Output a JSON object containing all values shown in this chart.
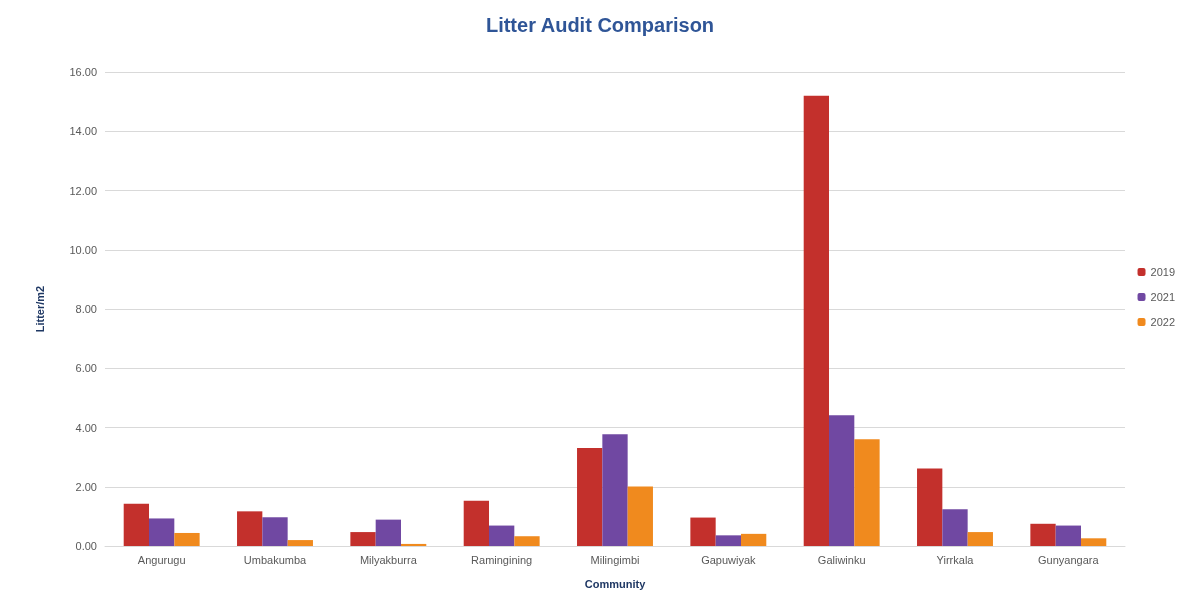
{
  "chart_data": {
    "type": "bar",
    "title": "Litter Audit Comparison",
    "xlabel": "Community",
    "ylabel": "Litter/m2",
    "categories": [
      "Angurugu",
      "Umbakumba",
      "Milyakburra",
      "Ramingining",
      "Milingimbi",
      "Gapuwiyak",
      "Galiwinku",
      "Yirrkala",
      "Gunyangara"
    ],
    "series": [
      {
        "name": "2019",
        "color": "#c3302c",
        "values": [
          1.43,
          1.17,
          0.47,
          1.53,
          3.31,
          0.96,
          15.2,
          2.62,
          0.75
        ]
      },
      {
        "name": "2021",
        "color": "#7048a2",
        "values": [
          0.93,
          0.97,
          0.89,
          0.69,
          3.77,
          0.36,
          4.41,
          1.24,
          0.69
        ]
      },
      {
        "name": "2022",
        "color": "#f08a1e",
        "values": [
          0.44,
          0.2,
          0.07,
          0.33,
          2.01,
          0.41,
          3.6,
          0.47,
          0.26
        ]
      }
    ],
    "ylim": [
      0,
      16
    ],
    "yticks": [
      {
        "value": 0,
        "label": "0.00"
      },
      {
        "value": 2,
        "label": "2.00"
      },
      {
        "value": 4,
        "label": "4.00"
      },
      {
        "value": 6,
        "label": "6.00"
      },
      {
        "value": 8,
        "label": "8.00"
      },
      {
        "value": 10,
        "label": "10.00"
      },
      {
        "value": 12,
        "label": "12.00"
      },
      {
        "value": 14,
        "label": "14.00"
      },
      {
        "value": 16,
        "label": "16.00"
      }
    ],
    "grid": "y",
    "legend": "right"
  }
}
